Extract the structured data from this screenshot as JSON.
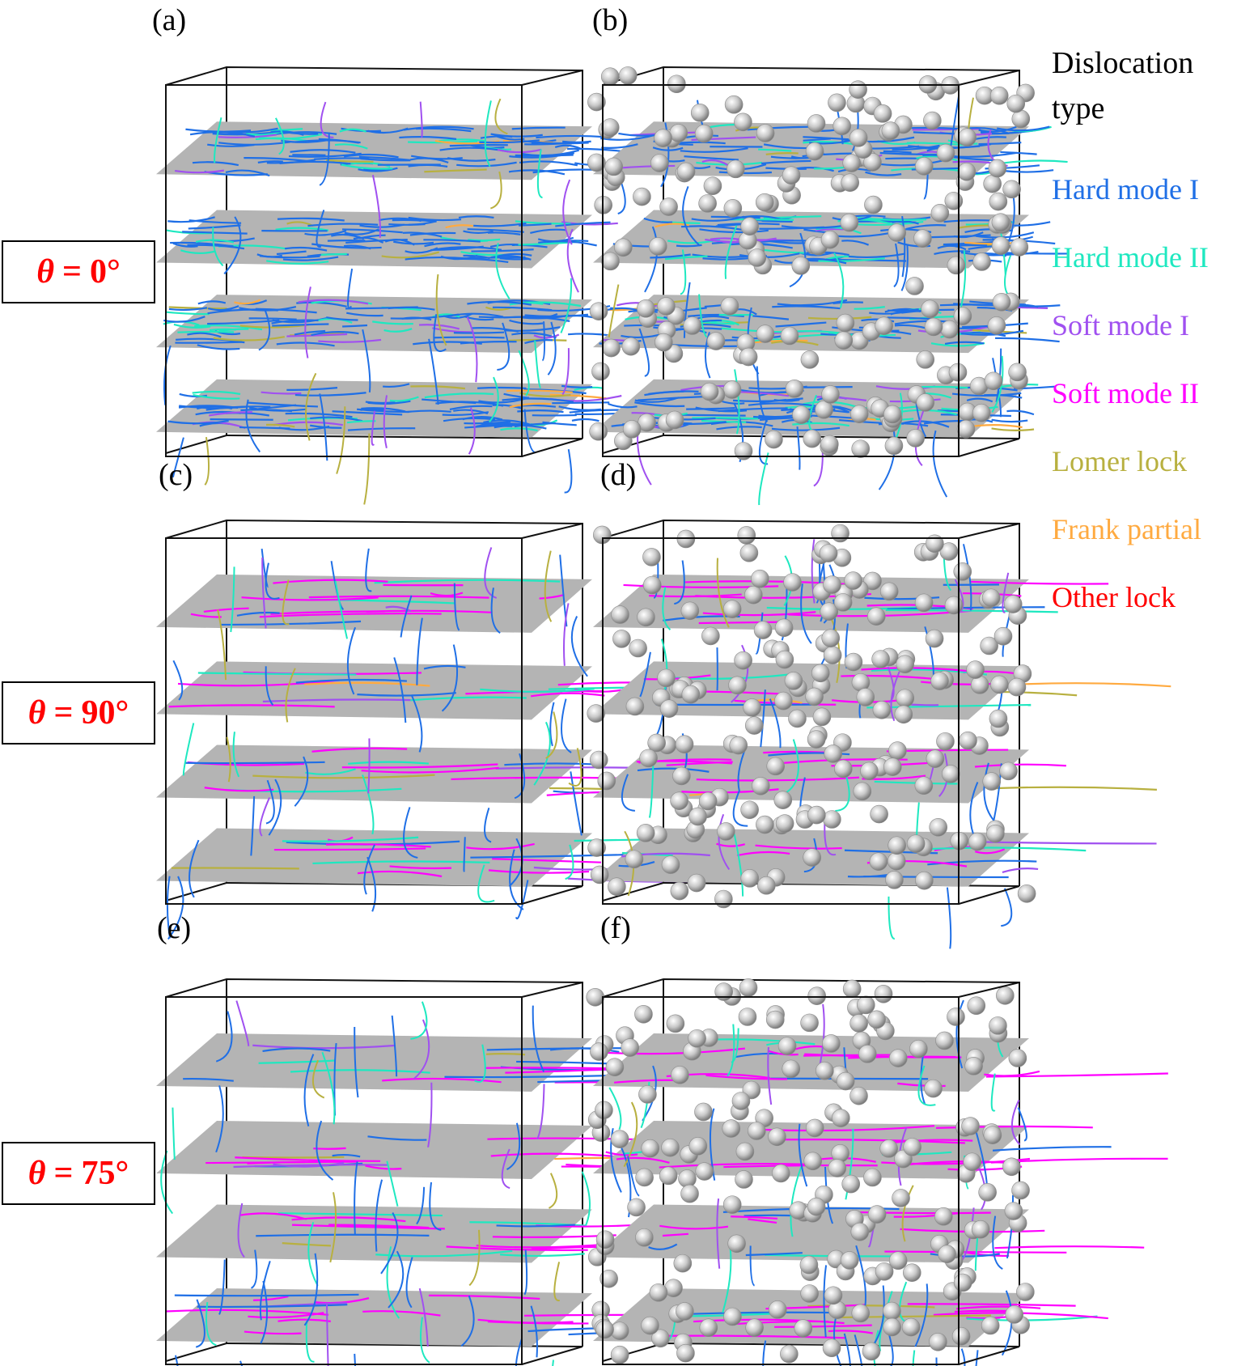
{
  "figure": {
    "panels": [
      {
        "id": "a",
        "label": "(a)",
        "theta": "0°",
        "spheres": false,
        "dominant": "hard1"
      },
      {
        "id": "b",
        "label": "(b)",
        "theta": "0°",
        "spheres": true,
        "dominant": "hard1"
      },
      {
        "id": "c",
        "label": "(c)",
        "theta": "90°",
        "spheres": false,
        "dominant": "soft2"
      },
      {
        "id": "d",
        "label": "(d)",
        "theta": "90°",
        "spheres": true,
        "dominant": "soft2"
      },
      {
        "id": "e",
        "label": "(e)",
        "theta": "75°",
        "spheres": false,
        "dominant": "soft2"
      },
      {
        "id": "f",
        "label": "(f)",
        "theta": "75°",
        "spheres": true,
        "dominant": "soft2"
      }
    ],
    "row_labels": [
      {
        "symbol": "θ",
        "eq": "=",
        "value": "0°"
      },
      {
        "symbol": "θ",
        "eq": "=",
        "value": "90°"
      },
      {
        "symbol": "θ",
        "eq": "=",
        "value": "75°"
      }
    ],
    "legend": {
      "title_line1": "Dislocation",
      "title_line2": "type",
      "items": [
        {
          "label": "Hard mode I",
          "color": "#1f6fe6"
        },
        {
          "label": "Hard mode II",
          "color": "#1ee8c0"
        },
        {
          "label": "Soft mode I",
          "color": "#a050f0"
        },
        {
          "label": "Soft mode II",
          "color": "#ff00ff"
        },
        {
          "label": "Lomer lock",
          "color": "#b8b040"
        },
        {
          "label": "Frank partial",
          "color": "#ffaa40"
        },
        {
          "label": "Other lock",
          "color": "#ff0000"
        }
      ]
    },
    "colors": {
      "plane": "#b4b4b4",
      "box_edge": "#111111",
      "sphere": "#d0d0d0",
      "theta_text": "#ff0000"
    }
  }
}
